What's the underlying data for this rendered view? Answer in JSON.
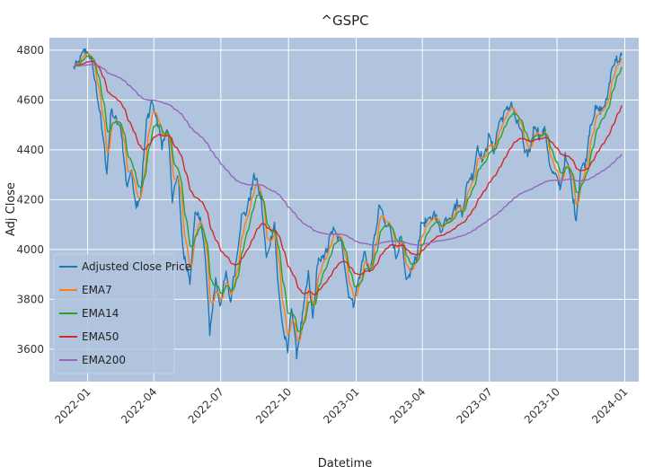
{
  "chart_data": {
    "type": "line",
    "title": "^GSPC",
    "xlabel": "Datetime",
    "ylabel": "Adj Close",
    "x_range": [
      "2021-11-10",
      "2024-01-20"
    ],
    "ylim": [
      3470,
      4850
    ],
    "y_ticks": [
      3600,
      3800,
      4000,
      4200,
      4400,
      4600,
      4800
    ],
    "x_ticks": [
      {
        "date": "2022-01-01",
        "label": "2022-01"
      },
      {
        "date": "2022-04-01",
        "label": "2022-04"
      },
      {
        "date": "2022-07-01",
        "label": "2022-07"
      },
      {
        "date": "2022-10-01",
        "label": "2022-10"
      },
      {
        "date": "2023-01-01",
        "label": "2023-01"
      },
      {
        "date": "2023-04-01",
        "label": "2023-04"
      },
      {
        "date": "2023-07-01",
        "label": "2023-07"
      },
      {
        "date": "2023-10-01",
        "label": "2023-10"
      },
      {
        "date": "2024-01-01",
        "label": "2024-01"
      }
    ],
    "grid": true,
    "legend_position": "lower-left",
    "background": "#b0c4de",
    "close_anchors": [
      [
        "2021-12-13",
        4730
      ],
      [
        "2021-12-20",
        4750
      ],
      [
        "2021-12-27",
        4795
      ],
      [
        "2022-01-03",
        4790
      ],
      [
        "2022-01-10",
        4700
      ],
      [
        "2022-01-17",
        4560
      ],
      [
        "2022-01-24",
        4400
      ],
      [
        "2022-01-27",
        4310
      ],
      [
        "2022-02-02",
        4560
      ],
      [
        "2022-02-10",
        4510
      ],
      [
        "2022-02-16",
        4470
      ],
      [
        "2022-02-23",
        4250
      ],
      [
        "2022-03-01",
        4320
      ],
      [
        "2022-03-08",
        4180
      ],
      [
        "2022-03-14",
        4220
      ],
      [
        "2022-03-22",
        4510
      ],
      [
        "2022-03-29",
        4600
      ],
      [
        "2022-04-05",
        4520
      ],
      [
        "2022-04-12",
        4420
      ],
      [
        "2022-04-20",
        4480
      ],
      [
        "2022-04-26",
        4200
      ],
      [
        "2022-05-04",
        4300
      ],
      [
        "2022-05-11",
        3980
      ],
      [
        "2022-05-20",
        3880
      ],
      [
        "2022-05-27",
        4130
      ],
      [
        "2022-06-03",
        4140
      ],
      [
        "2022-06-10",
        3960
      ],
      [
        "2022-06-16",
        3670
      ],
      [
        "2022-06-24",
        3880
      ],
      [
        "2022-06-30",
        3780
      ],
      [
        "2022-07-08",
        3900
      ],
      [
        "2022-07-14",
        3790
      ],
      [
        "2022-07-22",
        3960
      ],
      [
        "2022-07-29",
        4130
      ],
      [
        "2022-08-05",
        4150
      ],
      [
        "2022-08-16",
        4300
      ],
      [
        "2022-08-25",
        4200
      ],
      [
        "2022-09-01",
        3960
      ],
      [
        "2022-09-12",
        4110
      ],
      [
        "2022-09-16",
        3880
      ],
      [
        "2022-09-23",
        3690
      ],
      [
        "2022-09-30",
        3590
      ],
      [
        "2022-10-05",
        3780
      ],
      [
        "2022-10-12",
        3580
      ],
      [
        "2022-10-21",
        3750
      ],
      [
        "2022-10-28",
        3900
      ],
      [
        "2022-11-03",
        3720
      ],
      [
        "2022-11-10",
        3960
      ],
      [
        "2022-11-18",
        3960
      ],
      [
        "2022-11-30",
        4080
      ],
      [
        "2022-12-13",
        4020
      ],
      [
        "2022-12-21",
        3830
      ],
      [
        "2022-12-28",
        3780
      ],
      [
        "2023-01-06",
        3900
      ],
      [
        "2023-01-13",
        4000
      ],
      [
        "2023-01-19",
        3900
      ],
      [
        "2023-01-27",
        4070
      ],
      [
        "2023-02-02",
        4180
      ],
      [
        "2023-02-10",
        4090
      ],
      [
        "2023-02-16",
        4100
      ],
      [
        "2023-02-24",
        3970
      ],
      [
        "2023-03-03",
        4050
      ],
      [
        "2023-03-10",
        3860
      ],
      [
        "2023-03-17",
        3920
      ],
      [
        "2023-03-24",
        3970
      ],
      [
        "2023-03-31",
        4110
      ],
      [
        "2023-04-10",
        4110
      ],
      [
        "2023-04-18",
        4150
      ],
      [
        "2023-04-25",
        4070
      ],
      [
        "2023-05-02",
        4120
      ],
      [
        "2023-05-10",
        4140
      ],
      [
        "2023-05-19",
        4190
      ],
      [
        "2023-05-25",
        4150
      ],
      [
        "2023-06-02",
        4280
      ],
      [
        "2023-06-09",
        4300
      ],
      [
        "2023-06-15",
        4420
      ],
      [
        "2023-06-23",
        4350
      ],
      [
        "2023-06-30",
        4450
      ],
      [
        "2023-07-07",
        4400
      ],
      [
        "2023-07-14",
        4510
      ],
      [
        "2023-07-21",
        4540
      ],
      [
        "2023-07-31",
        4590
      ],
      [
        "2023-08-07",
        4510
      ],
      [
        "2023-08-14",
        4480
      ],
      [
        "2023-08-18",
        4370
      ],
      [
        "2023-08-25",
        4400
      ],
      [
        "2023-09-01",
        4510
      ],
      [
        "2023-09-08",
        4450
      ],
      [
        "2023-09-15",
        4480
      ],
      [
        "2023-09-22",
        4320
      ],
      [
        "2023-09-29",
        4290
      ],
      [
        "2023-10-06",
        4250
      ],
      [
        "2023-10-12",
        4370
      ],
      [
        "2023-10-18",
        4310
      ],
      [
        "2023-10-27",
        4120
      ],
      [
        "2023-11-02",
        4320
      ],
      [
        "2023-11-09",
        4350
      ],
      [
        "2023-11-15",
        4500
      ],
      [
        "2023-11-22",
        4560
      ],
      [
        "2023-11-30",
        4560
      ],
      [
        "2023-12-07",
        4590
      ],
      [
        "2023-12-14",
        4720
      ],
      [
        "2023-12-19",
        4770
      ],
      [
        "2023-12-22",
        4760
      ],
      [
        "2023-12-28",
        4780
      ]
    ],
    "series": [
      {
        "name": "Adjusted Close Price",
        "color": "#1f77b4",
        "kind": "close"
      },
      {
        "name": "EMA7",
        "color": "#ff7f0e",
        "kind": "ema",
        "span": 7
      },
      {
        "name": "EMA14",
        "color": "#2ca02c",
        "kind": "ema",
        "span": 14
      },
      {
        "name": "EMA50",
        "color": "#d62728",
        "kind": "ema",
        "span": 50
      },
      {
        "name": "EMA200",
        "color": "#9467bd",
        "kind": "ema",
        "span": 200
      }
    ]
  }
}
